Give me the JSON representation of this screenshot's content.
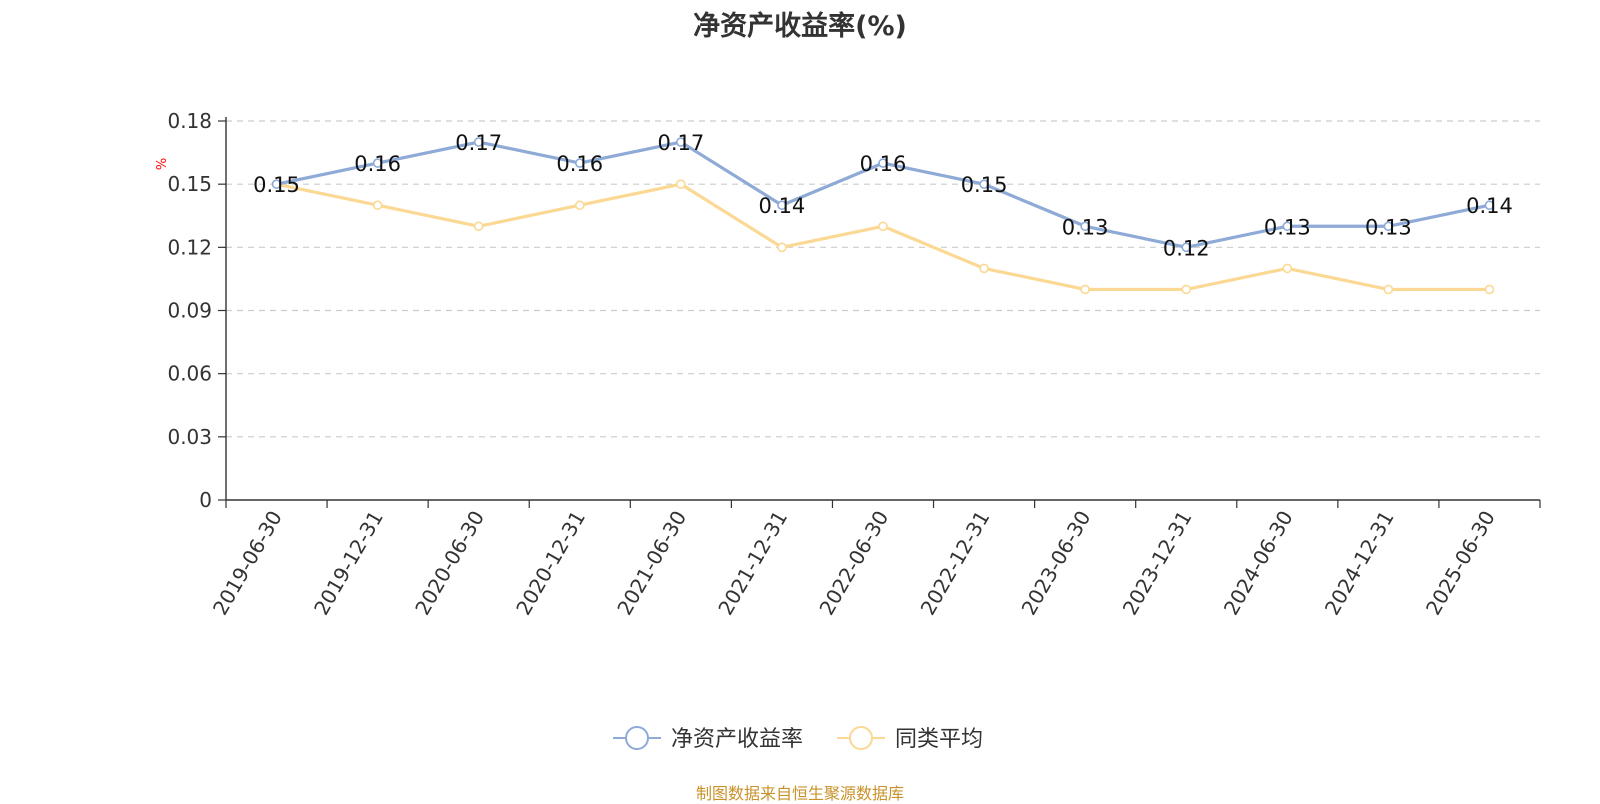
{
  "title": "净资产收益率(%)",
  "source": "制图数据来自恒生聚源数据库",
  "chart_data": {
    "type": "line",
    "title": "净资产收益率(%)",
    "ylabel": "%",
    "ylim": [
      0,
      0.18
    ],
    "yticks": [
      0,
      0.03,
      0.06,
      0.09,
      0.12,
      0.15,
      0.18
    ],
    "ytick_labels": [
      "0",
      "0.03",
      "0.06",
      "0.09",
      "0.12",
      "0.15",
      "0.18"
    ],
    "grid": true,
    "legend_position": "bottom",
    "categories": [
      "2019-06-30",
      "2019-12-31",
      "2020-06-30",
      "2020-12-31",
      "2021-06-30",
      "2021-12-31",
      "2022-06-30",
      "2022-12-31",
      "2023-06-30",
      "2023-12-31",
      "2024-06-30",
      "2024-12-31",
      "2025-06-30"
    ],
    "series": [
      {
        "name": "净资产收益率",
        "color": "#8eaad6",
        "values": [
          0.15,
          0.16,
          0.17,
          0.16,
          0.17,
          0.14,
          0.16,
          0.15,
          0.13,
          0.12,
          0.13,
          0.13,
          0.14
        ],
        "data_labels": [
          "0.15",
          "0.16",
          "0.17",
          "0.16",
          "0.17",
          "0.14",
          "0.16",
          "0.15",
          "0.13",
          "0.12",
          "0.13",
          "0.13",
          "0.14"
        ]
      },
      {
        "name": "同类平均",
        "color": "#fbd894",
        "values": [
          0.15,
          0.14,
          0.13,
          0.14,
          0.15,
          0.12,
          0.13,
          0.11,
          0.1,
          0.1,
          0.11,
          0.1,
          0.1
        ]
      }
    ]
  }
}
